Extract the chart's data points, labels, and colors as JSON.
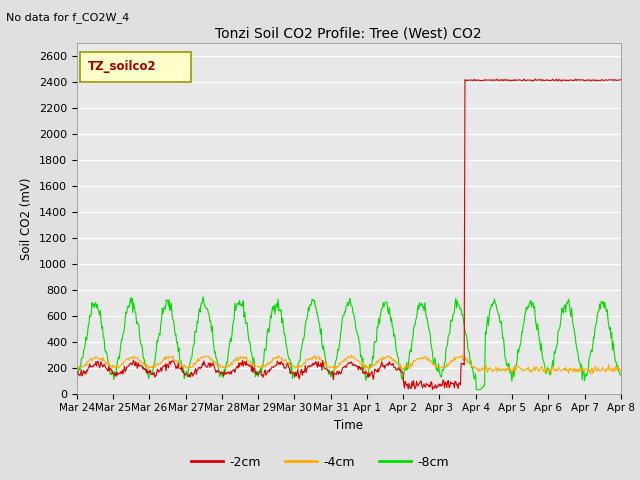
{
  "title": "Tonzi Soil CO2 Profile: Tree (West) CO2",
  "annotation_topleft": "No data for f_CO2W_4",
  "legend_box_text": "TZ_soilco2",
  "ylabel": "Soil CO2 (mV)",
  "xlabel": "Time",
  "ylim": [
    0,
    2700
  ],
  "yticks": [
    0,
    200,
    400,
    600,
    800,
    1000,
    1200,
    1400,
    1600,
    1800,
    2000,
    2200,
    2400,
    2600
  ],
  "background_color": "#e0e0e0",
  "plot_bg_color": "#e8e8e8",
  "grid_color": "#ffffff",
  "colors": {
    "red": "#dd0000",
    "orange": "#ffaa00",
    "green": "#00dd00"
  },
  "legend_entries": [
    "-2cm",
    "-4cm",
    "-8cm"
  ],
  "x_tick_labels": [
    "Mar 24",
    "Mar 25",
    "Mar 26",
    "Mar 27",
    "Mar 28",
    "Mar 29",
    "Mar 30",
    "Mar 31",
    "Apr 1",
    "Apr 2",
    "Apr 3",
    "Apr 4",
    "Apr 5",
    "Apr 6",
    "Apr 7",
    "Apr 8"
  ]
}
